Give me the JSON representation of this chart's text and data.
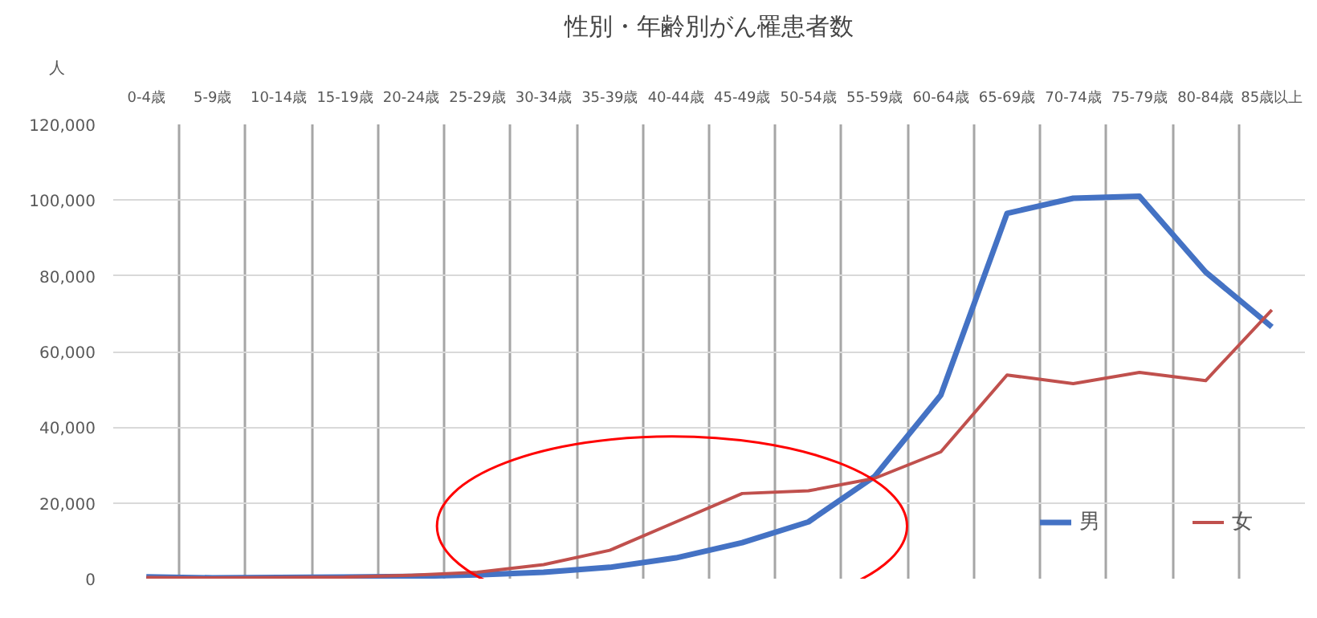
{
  "chart_data": {
    "type": "line",
    "title": "性別・年齢別がん罹患者数",
    "ylabel": "人",
    "categories": [
      "0-4歳",
      "5-9歳",
      "10-14歳",
      "15-19歳",
      "20-24歳",
      "25-29歳",
      "30-34歳",
      "35-39歳",
      "40-44歳",
      "45-49歳",
      "50-54歳",
      "55-59歳",
      "60-64歳",
      "65-69歳",
      "70-74歳",
      "75-79歳",
      "80-84歳",
      "85歳以上"
    ],
    "series": [
      {
        "name": "男",
        "color": "#4472c4",
        "values": [
          500,
          200,
          300,
          400,
          600,
          1000,
          1700,
          3000,
          5500,
          9500,
          15000,
          27000,
          48500,
          96500,
          100500,
          101000,
          81000,
          66500
        ]
      },
      {
        "name": "女",
        "color": "#c0504d",
        "values": [
          300,
          200,
          300,
          400,
          900,
          1700,
          3700,
          7500,
          15000,
          22500,
          23200,
          26500,
          33500,
          53800,
          51500,
          54500,
          52300,
          71000
        ]
      }
    ],
    "ylim": [
      0,
      120000
    ],
    "yticks": [
      0,
      {
        "value": 20000,
        "label": "20,000"
      },
      {
        "value": 40000,
        "label": "40,000"
      },
      {
        "value": 60000,
        "label": "60,000"
      },
      {
        "value": 80000,
        "label": "80,000"
      },
      {
        "value": 100000,
        "label": "100,000"
      },
      {
        "value": 120000,
        "label": "120,000"
      }
    ],
    "grid": true,
    "legend": "bottom right",
    "marker": "none",
    "line_style": "solid"
  }
}
